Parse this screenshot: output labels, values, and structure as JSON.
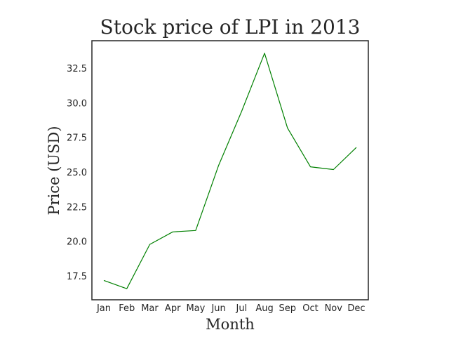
{
  "chart_data": {
    "type": "line",
    "title": "Stock price of LPI in 2013",
    "xlabel": "Month",
    "ylabel": "Price (USD)",
    "categories": [
      "Jan",
      "Feb",
      "Mar",
      "Apr",
      "May",
      "Jun",
      "Jul",
      "Aug",
      "Sep",
      "Oct",
      "Nov",
      "Dec"
    ],
    "series": [
      {
        "color": "#008000",
        "values": [
          17.2,
          16.6,
          19.8,
          20.7,
          20.8,
          25.5,
          29.4,
          33.6,
          28.2,
          25.4,
          25.2,
          26.8
        ]
      }
    ],
    "ylim": [
      15.8,
      34.5
    ],
    "yticks": [
      "17.5",
      "20.0",
      "22.5",
      "25.0",
      "27.5",
      "30.0",
      "32.5"
    ],
    "grid": false
  }
}
